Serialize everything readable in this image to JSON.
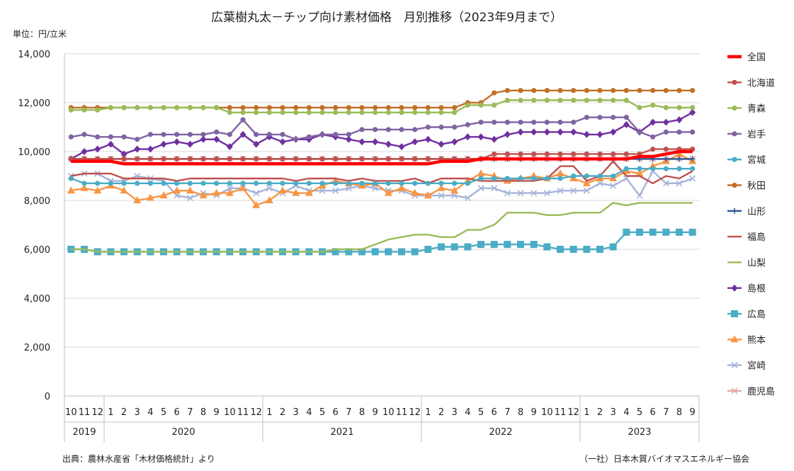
{
  "header": {
    "title": "広葉樹丸太－チップ向け素材価格　月別推移（2023年9月まで）",
    "unit": "単位：円/立米"
  },
  "footer": {
    "source": "出典：農林水産省「木材価格統計」より",
    "credit": "（一社）日本木質バイオマスエネルギー協会"
  },
  "chart_data": {
    "type": "line",
    "title": "広葉樹丸太－チップ向け素材価格　月別推移（2023年9月まで）",
    "ylabel": "単位：円/立米",
    "ylim": [
      0,
      14000
    ],
    "yticks": [
      "0",
      "2,000",
      "4,000",
      "6,000",
      "8,000",
      "10,000",
      "12,000",
      "14,000"
    ],
    "grid": "horizontal",
    "legend_position": "right",
    "x": [
      "2019-10",
      "2019-11",
      "2019-12",
      "2020-01",
      "2020-02",
      "2020-03",
      "2020-04",
      "2020-05",
      "2020-06",
      "2020-07",
      "2020-08",
      "2020-09",
      "2020-10",
      "2020-11",
      "2020-12",
      "2021-01",
      "2021-02",
      "2021-03",
      "2021-04",
      "2021-05",
      "2021-06",
      "2021-07",
      "2021-08",
      "2021-09",
      "2021-10",
      "2021-11",
      "2021-12",
      "2022-01",
      "2022-02",
      "2022-03",
      "2022-04",
      "2022-05",
      "2022-06",
      "2022-07",
      "2022-08",
      "2022-09",
      "2022-10",
      "2022-11",
      "2022-12",
      "2023-01",
      "2023-02",
      "2023-03",
      "2023-04",
      "2023-05",
      "2023-06",
      "2023-07",
      "2023-08",
      "2023-09"
    ],
    "month_labels": [
      "10",
      "11",
      "12",
      "1",
      "2",
      "3",
      "4",
      "5",
      "6",
      "7",
      "8",
      "9",
      "10",
      "11",
      "12",
      "1",
      "2",
      "3",
      "4",
      "5",
      "6",
      "7",
      "8",
      "9",
      "10",
      "11",
      "12",
      "1",
      "2",
      "3",
      "4",
      "5",
      "6",
      "7",
      "8",
      "9",
      "10",
      "11",
      "12",
      "1",
      "2",
      "3",
      "4",
      "5",
      "6",
      "7",
      "8",
      "9"
    ],
    "years": [
      {
        "label": "2019",
        "from": 0,
        "to": 2
      },
      {
        "label": "2020",
        "from": 3,
        "to": 14
      },
      {
        "label": "2021",
        "from": 15,
        "to": 26
      },
      {
        "label": "2022",
        "from": 27,
        "to": 38
      },
      {
        "label": "2023",
        "from": 39,
        "to": 47
      }
    ],
    "series": [
      {
        "name": "全国",
        "color": "#ff0000",
        "marker": "none",
        "values": [
          9600,
          9600,
          9600,
          9600,
          9500,
          9500,
          9500,
          9500,
          9500,
          9500,
          9500,
          9500,
          9500,
          9500,
          9500,
          9500,
          9500,
          9500,
          9500,
          9500,
          9500,
          9500,
          9500,
          9500,
          9500,
          9500,
          9500,
          9500,
          9600,
          9600,
          9600,
          9700,
          9700,
          9700,
          9700,
          9700,
          9700,
          9700,
          9700,
          9700,
          9700,
          9700,
          9700,
          9800,
          9800,
          9900,
          10000,
          10000
        ]
      },
      {
        "name": "北海道",
        "color": "#c0504d",
        "marker": "circle",
        "values": [
          9700,
          9700,
          9700,
          9700,
          9700,
          9700,
          9700,
          9700,
          9700,
          9700,
          9700,
          9700,
          9700,
          9700,
          9700,
          9700,
          9700,
          9700,
          9700,
          9700,
          9700,
          9700,
          9700,
          9700,
          9700,
          9700,
          9700,
          9700,
          9700,
          9700,
          9700,
          9700,
          9900,
          9900,
          9900,
          9900,
          9900,
          9900,
          9900,
          9900,
          9900,
          9900,
          9900,
          9900,
          10100,
          10100,
          10100,
          10100
        ]
      },
      {
        "name": "青森",
        "color": "#9bbb59",
        "marker": "circle",
        "values": [
          11700,
          11700,
          11700,
          11800,
          11800,
          11800,
          11800,
          11800,
          11800,
          11800,
          11800,
          11800,
          11600,
          11600,
          11600,
          11600,
          11600,
          11600,
          11600,
          11600,
          11600,
          11600,
          11600,
          11600,
          11600,
          11600,
          11600,
          11600,
          11600,
          11600,
          11900,
          11900,
          11900,
          12100,
          12100,
          12100,
          12100,
          12100,
          12100,
          12100,
          12100,
          12100,
          12100,
          11800,
          11900,
          11800,
          11800,
          11800
        ]
      },
      {
        "name": "岩手",
        "color": "#8064a2",
        "marker": "circle",
        "values": [
          10600,
          10700,
          10600,
          10600,
          10600,
          10500,
          10700,
          10700,
          10700,
          10700,
          10700,
          10800,
          10700,
          11300,
          10700,
          10700,
          10700,
          10500,
          10600,
          10700,
          10700,
          10700,
          10900,
          10900,
          10900,
          10900,
          10900,
          11000,
          11000,
          11000,
          11100,
          11200,
          11200,
          11200,
          11200,
          11200,
          11200,
          11200,
          11200,
          11400,
          11400,
          11400,
          11400,
          10800,
          10600,
          10800,
          10800,
          10800
        ]
      },
      {
        "name": "宮城",
        "color": "#4bacc6",
        "marker": "circle",
        "values": [
          8900,
          8700,
          8700,
          8700,
          8700,
          8700,
          8700,
          8700,
          8700,
          8700,
          8700,
          8700,
          8700,
          8700,
          8700,
          8700,
          8700,
          8700,
          8700,
          8700,
          8700,
          8700,
          8700,
          8700,
          8700,
          8700,
          8700,
          8700,
          8700,
          8700,
          8700,
          8900,
          8900,
          8900,
          8900,
          8900,
          8900,
          8900,
          9000,
          9000,
          9000,
          9000,
          9300,
          9300,
          9300,
          9300,
          9300,
          9300
        ]
      },
      {
        "name": "秋田",
        "color": "#c07028",
        "marker": "circle",
        "values": [
          11800,
          11800,
          11800,
          11800,
          11800,
          11800,
          11800,
          11800,
          11800,
          11800,
          11800,
          11800,
          11800,
          11800,
          11800,
          11800,
          11800,
          11800,
          11800,
          11800,
          11800,
          11800,
          11800,
          11800,
          11800,
          11800,
          11800,
          11800,
          11800,
          11800,
          12000,
          12000,
          12400,
          12500,
          12500,
          12500,
          12500,
          12500,
          12500,
          12500,
          12500,
          12500,
          12500,
          12500,
          12500,
          12500,
          12500,
          12500
        ]
      },
      {
        "name": "山形",
        "color": "#2f5597",
        "marker": "plus",
        "values": [
          9700,
          9700,
          9700,
          9700,
          9700,
          9700,
          9700,
          9700,
          9700,
          9700,
          9700,
          9700,
          9700,
          9700,
          9700,
          9700,
          9700,
          9700,
          9700,
          9700,
          9700,
          9700,
          9700,
          9700,
          9700,
          9700,
          9700,
          9700,
          9700,
          9700,
          9700,
          9700,
          9700,
          9700,
          9700,
          9700,
          9700,
          9700,
          9700,
          9700,
          9700,
          9700,
          9700,
          9700,
          9700,
          9700,
          9700,
          9700
        ]
      },
      {
        "name": "福島",
        "color": "#c0504d",
        "marker": "none",
        "values": [
          9000,
          9100,
          9100,
          9100,
          8900,
          8900,
          8900,
          8900,
          8800,
          8900,
          8900,
          8900,
          8900,
          8900,
          8900,
          8900,
          8900,
          8800,
          8900,
          8900,
          8900,
          8800,
          8900,
          8800,
          8800,
          8800,
          8900,
          8700,
          8900,
          8900,
          8900,
          8800,
          8800,
          8800,
          8800,
          8800,
          8900,
          9400,
          9400,
          8800,
          9000,
          9600,
          9000,
          9000,
          8700,
          9000,
          8900,
          9200
        ]
      },
      {
        "name": "山梨",
        "color": "#9bbb59",
        "marker": "none",
        "values": [
          6000,
          6000,
          5900,
          5900,
          5900,
          5900,
          5900,
          5900,
          5900,
          5900,
          5900,
          5900,
          5900,
          5900,
          5900,
          5900,
          5900,
          5900,
          5900,
          5900,
          6000,
          6000,
          6000,
          6200,
          6400,
          6500,
          6600,
          6600,
          6500,
          6500,
          6800,
          6800,
          7000,
          7500,
          7500,
          7500,
          7400,
          7400,
          7500,
          7500,
          7500,
          7900,
          7800,
          7900,
          7900,
          7900,
          7900,
          7900
        ]
      },
      {
        "name": "島根",
        "color": "#7030a0",
        "marker": "diamond",
        "values": [
          9700,
          10000,
          10100,
          10300,
          9900,
          10100,
          10100,
          10300,
          10400,
          10300,
          10500,
          10500,
          10200,
          10700,
          10300,
          10600,
          10400,
          10500,
          10500,
          10700,
          10600,
          10500,
          10400,
          10400,
          10300,
          10200,
          10400,
          10500,
          10300,
          10400,
          10600,
          10600,
          10500,
          10700,
          10800,
          10800,
          10800,
          10800,
          10800,
          10700,
          10700,
          10800,
          11100,
          10800,
          11200,
          11200,
          11300,
          11600
        ]
      },
      {
        "name": "広島",
        "color": "#4bacc6",
        "marker": "square",
        "values": [
          6000,
          6000,
          5900,
          5900,
          5900,
          5900,
          5900,
          5900,
          5900,
          5900,
          5900,
          5900,
          5900,
          5900,
          5900,
          5900,
          5900,
          5900,
          5900,
          5900,
          5900,
          5900,
          5900,
          5900,
          5900,
          5900,
          5900,
          6000,
          6100,
          6100,
          6100,
          6200,
          6200,
          6200,
          6200,
          6200,
          6100,
          6000,
          6000,
          6000,
          6000,
          6100,
          6700,
          6700,
          6700,
          6700,
          6700,
          6700
        ]
      },
      {
        "name": "熊本",
        "color": "#f79646",
        "marker": "triangle",
        "values": [
          8400,
          8500,
          8400,
          8600,
          8400,
          8000,
          8100,
          8200,
          8400,
          8400,
          8200,
          8300,
          8300,
          8500,
          7800,
          8000,
          8400,
          8300,
          8300,
          8600,
          8800,
          8700,
          8600,
          8700,
          8300,
          8500,
          8300,
          8200,
          8500,
          8400,
          8800,
          9100,
          9000,
          8800,
          8900,
          9000,
          8900,
          9100,
          8900,
          8700,
          8900,
          8900,
          9200,
          9100,
          9400,
          9600,
          9900,
          9600
        ]
      },
      {
        "name": "宮崎",
        "color": "#a6b4d8",
        "marker": "x",
        "values": [
          9000,
          9100,
          9100,
          8800,
          8800,
          9000,
          8900,
          8800,
          8200,
          8100,
          8300,
          8200,
          8500,
          8500,
          8300,
          8500,
          8300,
          8600,
          8400,
          8400,
          8400,
          8500,
          8600,
          8500,
          8400,
          8400,
          8200,
          8200,
          8200,
          8200,
          8100,
          8500,
          8500,
          8300,
          8300,
          8300,
          8300,
          8400,
          8400,
          8400,
          8700,
          8600,
          8900,
          8200,
          9200,
          8700,
          8700,
          8900
        ]
      },
      {
        "name": "鹿児島",
        "color": "#e6a8a8",
        "marker": "x",
        "values": [
          9700,
          9700,
          9700,
          9700,
          9700,
          9700,
          9700,
          9700,
          9700,
          9700,
          9700,
          9700,
          9700,
          9700,
          9700,
          9700,
          9700,
          9700,
          9700,
          9700,
          9700,
          9700,
          9700,
          9700,
          9700,
          9700,
          9700,
          9700,
          9700,
          9700,
          9700,
          9700,
          9700,
          9700,
          9700,
          9700,
          9700,
          9700,
          9700,
          9700,
          9700,
          9700,
          9700,
          9700,
          9700,
          9700,
          9700,
          9700
        ]
      }
    ]
  }
}
